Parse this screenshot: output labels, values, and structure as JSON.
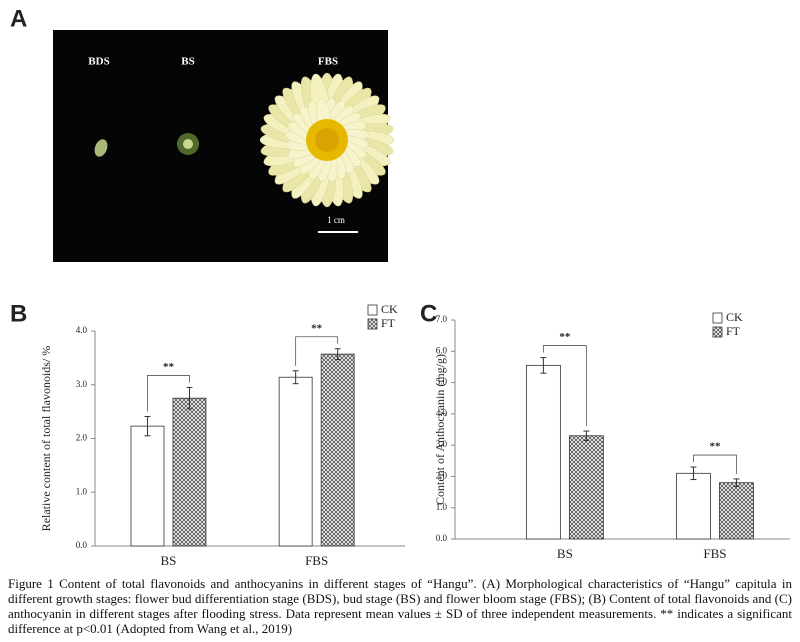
{
  "figure": {
    "photo": {
      "panel_label": "A",
      "labels": [
        "BDS",
        "BS",
        "FBS"
      ],
      "scale_bar": "1 cm"
    },
    "caption": "Figure 1 Content of total flavonoids and anthocyanins in different stages of “Hangu”. (A) Morphological characteristics of “Hangu” capitula in different growth stages: flower bud differentiation stage (BDS), bud stage (BS) and flower bloom stage (FBS); (B) Content of total flavonoids and (C) anthocyanin in different stages after flooding stress. Data represent mean values ± SD of three independent measurements. ** indicates a significant difference at p<0.01 (Adopted from Wang et al., 2019)"
  },
  "chart_data": [
    {
      "type": "bar",
      "panel_label": "B",
      "y_label": "Relative content of total flavonoids/ %",
      "categories": [
        "BS",
        "FBS"
      ],
      "series": [
        {
          "name": "CK",
          "color": "#ffffff",
          "hatch": false,
          "values": [
            2.23,
            3.14
          ],
          "errors": [
            0.18,
            0.12
          ]
        },
        {
          "name": "FT",
          "color": "#555555",
          "hatch": true,
          "values": [
            2.75,
            3.57
          ],
          "errors": [
            0.2,
            0.1
          ]
        }
      ],
      "significance": [
        "**",
        "**"
      ],
      "ylim": [
        0,
        4
      ],
      "yticks": [
        {
          "value": 0,
          "label": "0.0"
        },
        {
          "value": 1,
          "label": "1.0"
        },
        {
          "value": 2,
          "label": "2.0"
        },
        {
          "value": 3,
          "label": "3.0"
        },
        {
          "value": 4,
          "label": "4.0"
        }
      ]
    },
    {
      "type": "bar",
      "panel_label": "C",
      "y_label": "Content of Anthocyanin (mg/g)",
      "categories": [
        "BS",
        "FBS"
      ],
      "series": [
        {
          "name": "CK",
          "color": "#ffffff",
          "hatch": false,
          "values": [
            5.55,
            2.1
          ],
          "errors": [
            0.25,
            0.2
          ]
        },
        {
          "name": "FT",
          "color": "#555555",
          "hatch": true,
          "values": [
            3.3,
            1.8
          ],
          "errors": [
            0.15,
            0.12
          ]
        }
      ],
      "significance": [
        "**",
        "**"
      ],
      "ylim": [
        0,
        7
      ],
      "yticks": [
        {
          "value": 0,
          "label": "0.0"
        },
        {
          "value": 1,
          "label": "1.0"
        },
        {
          "value": 2,
          "label": "2.0"
        },
        {
          "value": 3,
          "label": "3.0"
        },
        {
          "value": 4,
          "label": "4.0"
        },
        {
          "value": 5,
          "label": "5.0"
        },
        {
          "value": 6,
          "label": "6.0"
        },
        {
          "value": 7,
          "label": "7.0"
        }
      ]
    }
  ]
}
